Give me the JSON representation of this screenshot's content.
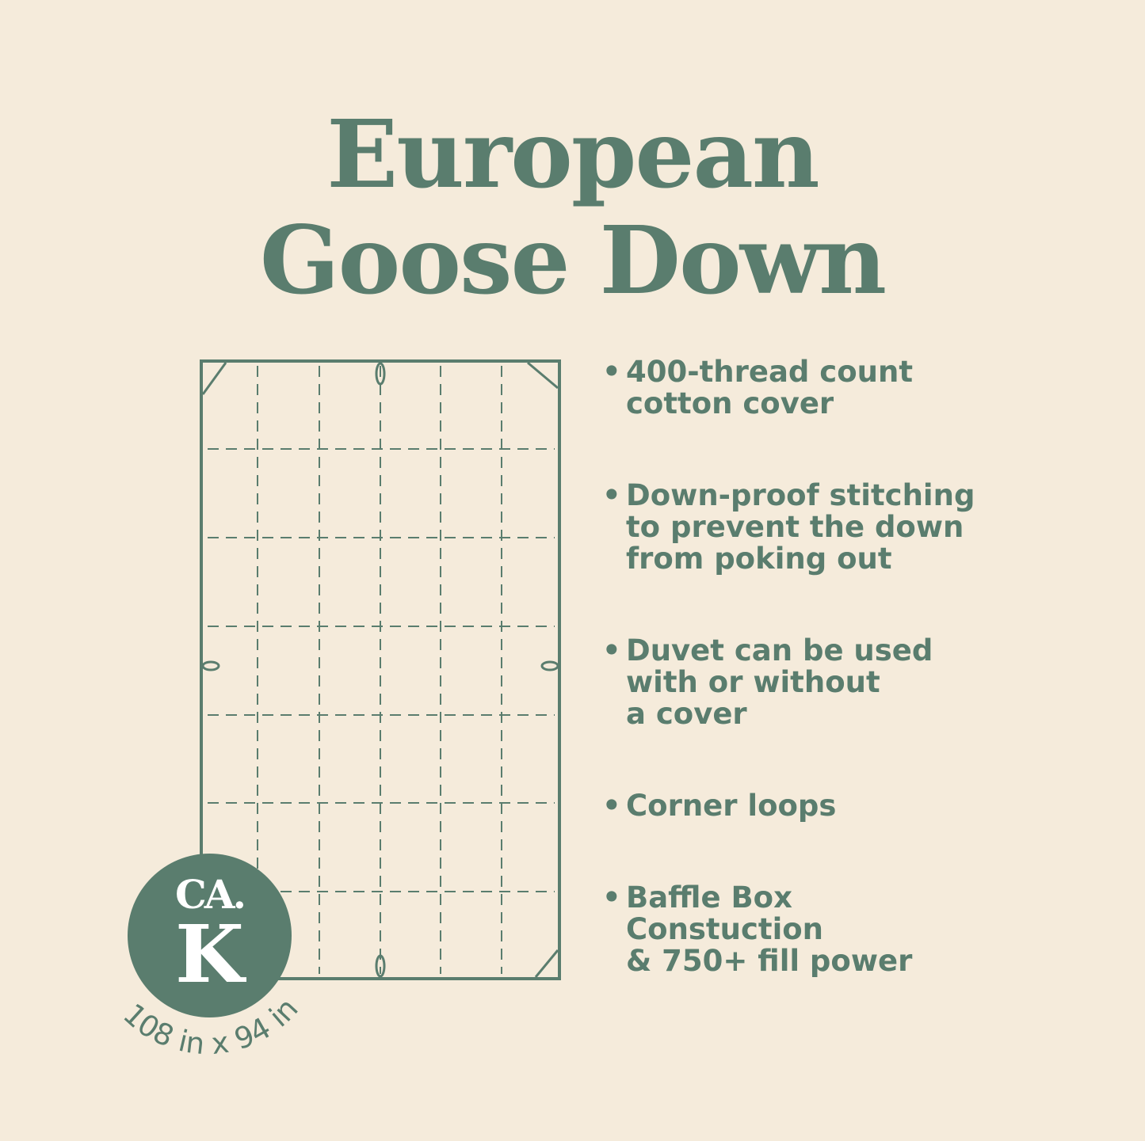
{
  "title": {
    "line1": "European",
    "line2": "Goose Down"
  },
  "features": [
    {
      "lines": [
        "400-thread count",
        "cotton cover"
      ]
    },
    {
      "lines": [
        "Down-proof stitching",
        "to prevent the down",
        "from poking out"
      ]
    },
    {
      "lines": [
        "Duvet can be used",
        "with or without",
        "a cover"
      ]
    },
    {
      "lines": [
        "Corner loops"
      ]
    },
    {
      "lines": [
        "Baffle Box",
        "Constuction",
        "& 750+ fill power"
      ]
    }
  ],
  "logo": {
    "top": "CA.",
    "bottom": "K"
  },
  "dimensions": "108 in x 94 in",
  "colors": {
    "background": "#f5ebdb",
    "accent": "#5a7d6e"
  }
}
